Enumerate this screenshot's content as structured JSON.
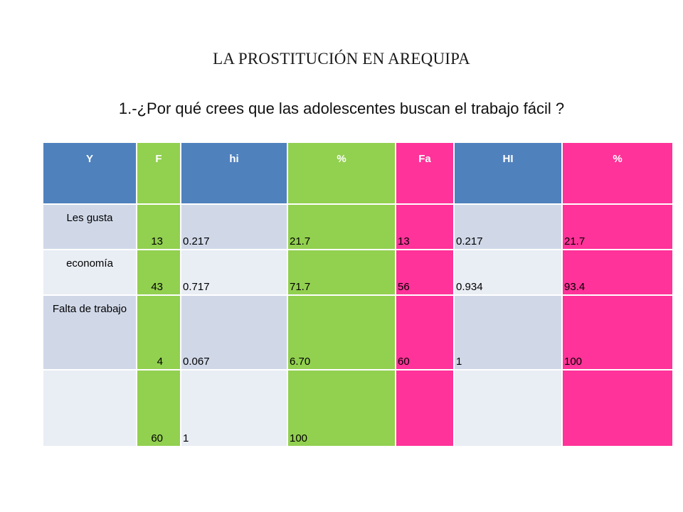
{
  "slide": {
    "title": "LA PROSTITUCIÓN  EN AREQUIPA",
    "question": "1.-¿Por qué crees que las adolescentes  buscan el trabajo fácil ?"
  },
  "table": {
    "headers": [
      "Y",
      "F",
      "hi",
      "%",
      "Fa",
      "HI",
      "%"
    ],
    "rows": [
      [
        "Les gusta",
        "13",
        "0.217",
        "21.7",
        "13",
        "0.217",
        "21.7"
      ],
      [
        "economía",
        "43",
        "0.717",
        "71.7",
        "56",
        "0.934",
        "93.4"
      ],
      [
        "Falta de trabajo",
        "4",
        "0.067",
        "6.70",
        "60",
        "1",
        "100"
      ],
      [
        "",
        "60",
        "1",
        "100",
        "",
        "",
        ""
      ]
    ]
  },
  "colors": {
    "header_blue": "#4f81bd",
    "green": "#92d050",
    "pink": "#ff3399",
    "lavender": "#d0d8e8",
    "light_blue": "#e9edf4"
  }
}
